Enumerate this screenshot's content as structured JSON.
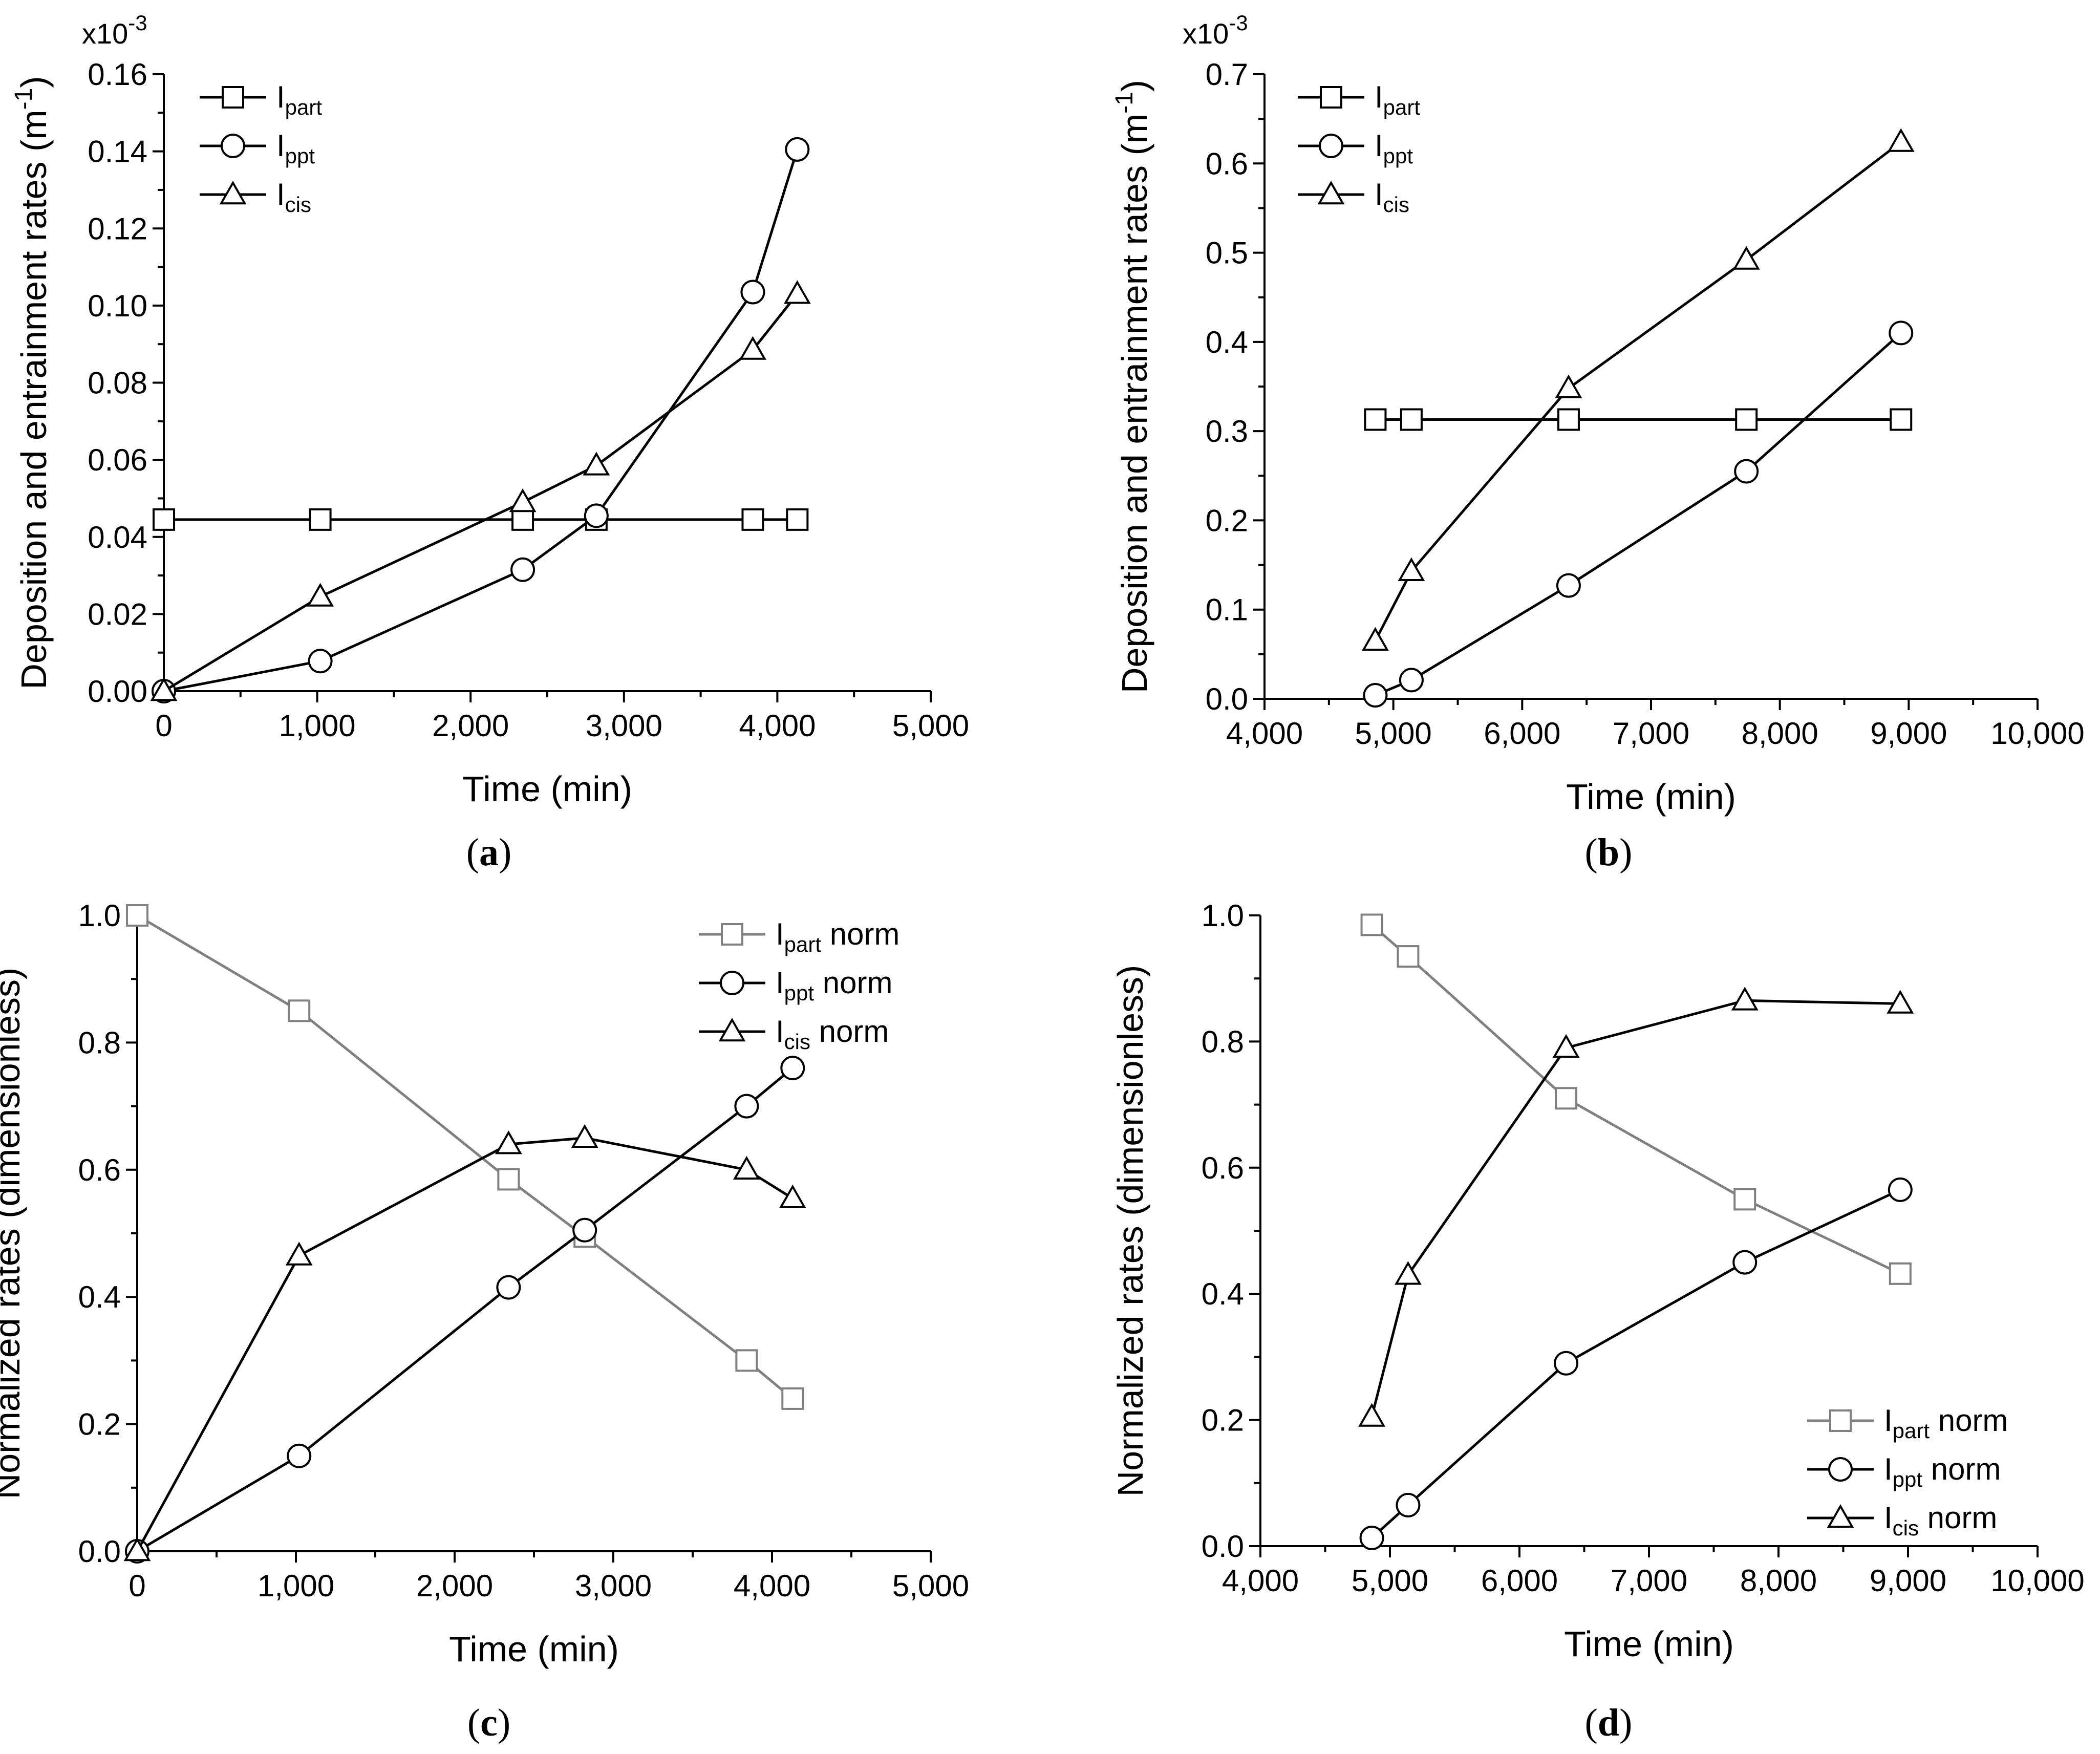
{
  "chart_data": [
    {
      "type": "line",
      "panel": "a",
      "xlabel": "Time (min)",
      "ylabel": "Deposition and entrainment rates (m",
      "ylabel_sup": "-1",
      "ylabel_end": ")",
      "multiplier": "x10",
      "multiplier_exp": "-3",
      "xlim": [
        0,
        5000
      ],
      "ylim": [
        0,
        0.16
      ],
      "xticks": [
        0,
        1000,
        2000,
        3000,
        4000,
        5000
      ],
      "xtick_labels": [
        "0",
        "1,000",
        "2,000",
        "3,000",
        "4,000",
        "5,000"
      ],
      "yticks": [
        0,
        0.02,
        0.04,
        0.06,
        0.08,
        0.1,
        0.12,
        0.14,
        0.16
      ],
      "ytick_labels": [
        "0.00",
        "0.02",
        "0.04",
        "0.06",
        "0.08",
        "0.10",
        "0.12",
        "0.14",
        "0.16"
      ],
      "legend_position": "top-left",
      "series": [
        {
          "name": "I",
          "sub": "part",
          "suffix": "",
          "marker": "square",
          "color": "#000000",
          "x": [
            0,
            1020,
            2340,
            2820,
            3840,
            4130
          ],
          "y": [
            0.0445,
            0.0445,
            0.0445,
            0.0445,
            0.0445,
            0.0445
          ]
        },
        {
          "name": "I",
          "sub": "ppt",
          "suffix": "",
          "marker": "circle",
          "color": "#000000",
          "x": [
            0,
            1020,
            2340,
            2820,
            3840,
            4130
          ],
          "y": [
            0,
            0.0078,
            0.0315,
            0.0455,
            0.1035,
            0.1405
          ]
        },
        {
          "name": "I",
          "sub": "cis",
          "suffix": "",
          "marker": "triangle",
          "color": "#000000",
          "x": [
            0,
            1020,
            2340,
            2820,
            3840,
            4130
          ],
          "y": [
            0,
            0.0245,
            0.049,
            0.0585,
            0.0885,
            0.103
          ]
        }
      ]
    },
    {
      "type": "line",
      "panel": "b",
      "xlabel": "Time (min)",
      "ylabel": "Deposition and entrainment rates (m",
      "ylabel_sup": "-1",
      "ylabel_end": ")",
      "multiplier": "x10",
      "multiplier_exp": "-3",
      "xlim": [
        4000,
        10000
      ],
      "ylim": [
        0,
        0.7
      ],
      "xticks": [
        4000,
        5000,
        6000,
        7000,
        8000,
        9000,
        10000
      ],
      "xtick_labels": [
        "4,000",
        "5,000",
        "6,000",
        "7,000",
        "8,000",
        "9,000",
        "10,000"
      ],
      "yticks": [
        0,
        0.1,
        0.2,
        0.3,
        0.4,
        0.5,
        0.6,
        0.7
      ],
      "ytick_labels": [
        "0.0",
        "0.1",
        "0.2",
        "0.3",
        "0.4",
        "0.5",
        "0.6",
        "0.7"
      ],
      "legend_position": "top-left",
      "series": [
        {
          "name": "I",
          "sub": "part",
          "suffix": "",
          "marker": "square",
          "color": "#000000",
          "x": [
            4860,
            5140,
            6360,
            7740,
            8940
          ],
          "y": [
            0.313,
            0.313,
            0.313,
            0.313,
            0.313
          ]
        },
        {
          "name": "I",
          "sub": "ppt",
          "suffix": "",
          "marker": "circle",
          "color": "#000000",
          "x": [
            4860,
            5140,
            6360,
            7740,
            8940
          ],
          "y": [
            0.004,
            0.021,
            0.127,
            0.255,
            0.41
          ]
        },
        {
          "name": "I",
          "sub": "cis",
          "suffix": "",
          "marker": "triangle",
          "color": "#000000",
          "x": [
            4860,
            5140,
            6360,
            7740,
            8940
          ],
          "y": [
            0.065,
            0.143,
            0.348,
            0.492,
            0.624
          ]
        }
      ]
    },
    {
      "type": "line",
      "panel": "c",
      "xlabel": "Time (min)",
      "ylabel": "Normalized rates (dimensionless)",
      "ylabel_sup": "",
      "ylabel_end": "",
      "multiplier": "",
      "multiplier_exp": "",
      "xlim": [
        0,
        5000
      ],
      "ylim": [
        0,
        1.0
      ],
      "xticks": [
        0,
        1000,
        2000,
        3000,
        4000,
        5000
      ],
      "xtick_labels": [
        "0",
        "1,000",
        "2,000",
        "3,000",
        "4,000",
        "5,000"
      ],
      "yticks": [
        0,
        0.2,
        0.4,
        0.6,
        0.8,
        1.0
      ],
      "ytick_labels": [
        "0.0",
        "0.2",
        "0.4",
        "0.6",
        "0.8",
        "1.0"
      ],
      "legend_position": "top-right",
      "series": [
        {
          "name": "I",
          "sub": "part",
          "suffix": " norm",
          "marker": "square",
          "color": "#808080",
          "x": [
            0,
            1020,
            2340,
            2820,
            3840,
            4130
          ],
          "y": [
            1.0,
            0.85,
            0.585,
            0.495,
            0.3,
            0.24
          ]
        },
        {
          "name": "I",
          "sub": "ppt",
          "suffix": " norm",
          "marker": "circle",
          "color": "#000000",
          "x": [
            0,
            1020,
            2340,
            2820,
            3840,
            4130
          ],
          "y": [
            0,
            0.15,
            0.415,
            0.505,
            0.7,
            0.76
          ]
        },
        {
          "name": "I",
          "sub": "cis",
          "suffix": " norm",
          "marker": "triangle",
          "color": "#000000",
          "x": [
            0,
            1020,
            2340,
            2820,
            3840,
            4130
          ],
          "y": [
            0,
            0.465,
            0.64,
            0.65,
            0.6,
            0.555
          ]
        }
      ]
    },
    {
      "type": "line",
      "panel": "d",
      "xlabel": "Time (min)",
      "ylabel": "Normalized rates (dimensionless)",
      "ylabel_sup": "",
      "ylabel_end": "",
      "multiplier": "",
      "multiplier_exp": "",
      "xlim": [
        4000,
        10000
      ],
      "ylim": [
        0,
        1.0
      ],
      "xticks": [
        4000,
        5000,
        6000,
        7000,
        8000,
        9000,
        10000
      ],
      "xtick_labels": [
        "4,000",
        "5,000",
        "6,000",
        "7,000",
        "8,000",
        "9,000",
        "10,000"
      ],
      "yticks": [
        0,
        0.2,
        0.4,
        0.6,
        0.8,
        1.0
      ],
      "ytick_labels": [
        "0.0",
        "0.2",
        "0.4",
        "0.6",
        "0.8",
        "1.0"
      ],
      "legend_position": "bottom-right",
      "series": [
        {
          "name": "I",
          "sub": "part",
          "suffix": " norm",
          "marker": "square",
          "color": "#808080",
          "x": [
            4860,
            5140,
            6360,
            7740,
            8940
          ],
          "y": [
            0.985,
            0.935,
            0.71,
            0.55,
            0.432
          ]
        },
        {
          "name": "I",
          "sub": "ppt",
          "suffix": " norm",
          "marker": "circle",
          "color": "#000000",
          "x": [
            4860,
            5140,
            6360,
            7740,
            8940
          ],
          "y": [
            0.013,
            0.065,
            0.29,
            0.45,
            0.565
          ]
        },
        {
          "name": "I",
          "sub": "cis",
          "suffix": " norm",
          "marker": "triangle",
          "color": "#000000",
          "x": [
            4860,
            5140,
            6360,
            7740,
            8940
          ],
          "y": [
            0.205,
            0.43,
            0.79,
            0.865,
            0.86
          ]
        }
      ]
    }
  ],
  "panel_labels": [
    "a",
    "b",
    "c",
    "d"
  ]
}
